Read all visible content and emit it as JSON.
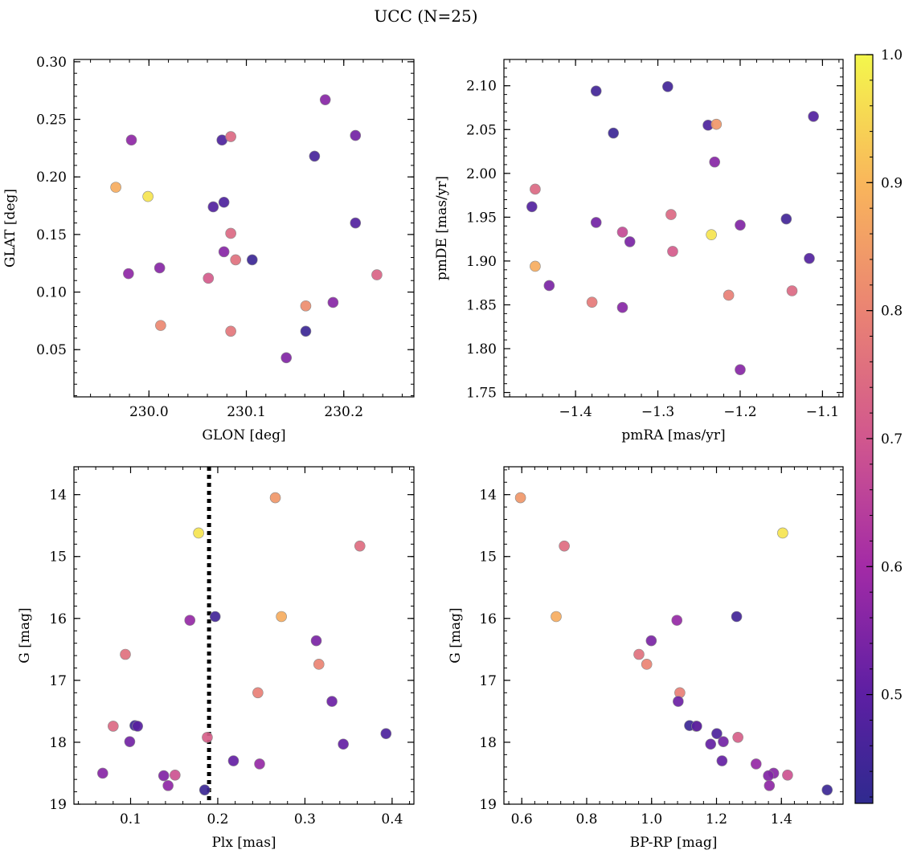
{
  "figure": {
    "title": "UCC (N=25)"
  },
  "colorbar": {
    "vmin": 0.415,
    "vmax": 1.0,
    "ticks": [
      0.5,
      0.6,
      0.7,
      0.8,
      0.9,
      1.0
    ],
    "tick_labels": [
      "0.5",
      "0.6",
      "0.7",
      "0.8",
      "0.9",
      "1.0"
    ],
    "colormap": "plasma"
  },
  "chart_data": [
    {
      "type": "scatter",
      "id": "p1",
      "title": "",
      "xlabel": "GLON [deg]",
      "ylabel": "GLAT [deg]",
      "xlim": [
        229.923,
        230.272
      ],
      "ylim": [
        0.009,
        0.302
      ],
      "invert_y": false,
      "xticks": [
        230.0,
        230.1,
        230.2
      ],
      "xtick_labels": [
        "230.0",
        "230.1",
        "230.2"
      ],
      "yticks": [
        0.05,
        0.1,
        0.15,
        0.2,
        0.25,
        0.3
      ],
      "ytick_labels": [
        "0.05",
        "0.10",
        "0.15",
        "0.20",
        "0.25",
        "0.30"
      ],
      "points": [
        {
          "x": 230.181,
          "y": 0.267,
          "c": 0.56
        },
        {
          "x": 229.982,
          "y": 0.232,
          "c": 0.57
        },
        {
          "x": 230.075,
          "y": 0.232,
          "c": 0.47
        },
        {
          "x": 230.084,
          "y": 0.235,
          "c": 0.74
        },
        {
          "x": 230.212,
          "y": 0.236,
          "c": 0.53
        },
        {
          "x": 230.17,
          "y": 0.218,
          "c": 0.46
        },
        {
          "x": 229.966,
          "y": 0.191,
          "c": 0.88
        },
        {
          "x": 229.999,
          "y": 0.183,
          "c": 0.97
        },
        {
          "x": 230.066,
          "y": 0.174,
          "c": 0.48
        },
        {
          "x": 230.077,
          "y": 0.178,
          "c": 0.47
        },
        {
          "x": 230.212,
          "y": 0.16,
          "c": 0.48
        },
        {
          "x": 230.084,
          "y": 0.151,
          "c": 0.74
        },
        {
          "x": 230.077,
          "y": 0.135,
          "c": 0.56
        },
        {
          "x": 230.089,
          "y": 0.128,
          "c": 0.76
        },
        {
          "x": 230.106,
          "y": 0.128,
          "c": 0.44
        },
        {
          "x": 229.979,
          "y": 0.116,
          "c": 0.57
        },
        {
          "x": 230.011,
          "y": 0.121,
          "c": 0.56
        },
        {
          "x": 230.061,
          "y": 0.112,
          "c": 0.71
        },
        {
          "x": 230.234,
          "y": 0.115,
          "c": 0.73
        },
        {
          "x": 230.161,
          "y": 0.088,
          "c": 0.82
        },
        {
          "x": 230.189,
          "y": 0.091,
          "c": 0.56
        },
        {
          "x": 230.012,
          "y": 0.071,
          "c": 0.81
        },
        {
          "x": 230.084,
          "y": 0.066,
          "c": 0.77
        },
        {
          "x": 230.161,
          "y": 0.066,
          "c": 0.44
        },
        {
          "x": 230.141,
          "y": 0.043,
          "c": 0.55
        }
      ]
    },
    {
      "type": "scatter",
      "id": "p2",
      "title": "",
      "xlabel": "pmRA [mas/yr]",
      "ylabel": "pmDE [mas/yr]",
      "xlim": [
        -1.487,
        -1.075
      ],
      "ylim": [
        1.745,
        2.13
      ],
      "invert_y": false,
      "xticks": [
        -1.4,
        -1.3,
        -1.2,
        -1.1
      ],
      "xtick_labels": [
        "−1.4",
        "−1.3",
        "−1.2",
        "−1.1"
      ],
      "yticks": [
        1.75,
        1.8,
        1.85,
        1.9,
        1.95,
        2.0,
        2.05,
        2.1
      ],
      "ytick_labels": [
        "1.75",
        "1.80",
        "1.85",
        "1.90",
        "1.95",
        "2.00",
        "2.05",
        "2.10"
      ],
      "points": [
        {
          "x": -1.375,
          "y": 2.094,
          "c": 0.45
        },
        {
          "x": -1.288,
          "y": 2.099,
          "c": 0.45
        },
        {
          "x": -1.354,
          "y": 2.046,
          "c": 0.44
        },
        {
          "x": -1.239,
          "y": 2.055,
          "c": 0.47
        },
        {
          "x": -1.229,
          "y": 2.056,
          "c": 0.84
        },
        {
          "x": -1.111,
          "y": 2.065,
          "c": 0.48
        },
        {
          "x": -1.231,
          "y": 2.013,
          "c": 0.56
        },
        {
          "x": -1.449,
          "y": 1.982,
          "c": 0.74
        },
        {
          "x": -1.453,
          "y": 1.962,
          "c": 0.48
        },
        {
          "x": -1.375,
          "y": 1.944,
          "c": 0.53
        },
        {
          "x": -1.284,
          "y": 1.953,
          "c": 0.74
        },
        {
          "x": -1.2,
          "y": 1.941,
          "c": 0.55
        },
        {
          "x": -1.144,
          "y": 1.948,
          "c": 0.45
        },
        {
          "x": -1.343,
          "y": 1.933,
          "c": 0.67
        },
        {
          "x": -1.334,
          "y": 1.922,
          "c": 0.54
        },
        {
          "x": -1.235,
          "y": 1.93,
          "c": 0.97
        },
        {
          "x": -1.282,
          "y": 1.911,
          "c": 0.71
        },
        {
          "x": -1.449,
          "y": 1.894,
          "c": 0.88
        },
        {
          "x": -1.116,
          "y": 1.903,
          "c": 0.48
        },
        {
          "x": -1.432,
          "y": 1.872,
          "c": 0.54
        },
        {
          "x": -1.38,
          "y": 1.853,
          "c": 0.78
        },
        {
          "x": -1.343,
          "y": 1.847,
          "c": 0.56
        },
        {
          "x": -1.214,
          "y": 1.861,
          "c": 0.79
        },
        {
          "x": -1.137,
          "y": 1.866,
          "c": 0.74
        },
        {
          "x": -1.2,
          "y": 1.776,
          "c": 0.56
        }
      ]
    },
    {
      "type": "scatter",
      "id": "p3",
      "title": "",
      "xlabel": "Plx [mas]",
      "ylabel": "G [mag]",
      "xlim": [
        0.035,
        0.425
      ],
      "ylim": [
        19.0,
        13.55
      ],
      "invert_y": true,
      "vline": 0.19,
      "xticks": [
        0.1,
        0.2,
        0.3,
        0.4
      ],
      "xtick_labels": [
        "0.1",
        "0.2",
        "0.3",
        "0.4"
      ],
      "yticks": [
        14,
        15,
        16,
        17,
        18,
        19
      ],
      "ytick_labels": [
        "14",
        "15",
        "16",
        "17",
        "18",
        "19"
      ],
      "points": [
        {
          "x": 0.266,
          "y": 14.05,
          "c": 0.84
        },
        {
          "x": 0.178,
          "y": 14.62,
          "c": 0.97
        },
        {
          "x": 0.363,
          "y": 14.83,
          "c": 0.75
        },
        {
          "x": 0.168,
          "y": 16.03,
          "c": 0.58
        },
        {
          "x": 0.197,
          "y": 15.97,
          "c": 0.45
        },
        {
          "x": 0.273,
          "y": 15.97,
          "c": 0.88
        },
        {
          "x": 0.313,
          "y": 16.36,
          "c": 0.54
        },
        {
          "x": 0.094,
          "y": 16.58,
          "c": 0.76
        },
        {
          "x": 0.316,
          "y": 16.74,
          "c": 0.8
        },
        {
          "x": 0.246,
          "y": 17.2,
          "c": 0.79
        },
        {
          "x": 0.331,
          "y": 17.34,
          "c": 0.52
        },
        {
          "x": 0.08,
          "y": 17.74,
          "c": 0.74
        },
        {
          "x": 0.105,
          "y": 17.73,
          "c": 0.44
        },
        {
          "x": 0.108,
          "y": 17.74,
          "c": 0.49
        },
        {
          "x": 0.393,
          "y": 17.86,
          "c": 0.47
        },
        {
          "x": 0.099,
          "y": 17.99,
          "c": 0.53
        },
        {
          "x": 0.188,
          "y": 17.92,
          "c": 0.72
        },
        {
          "x": 0.344,
          "y": 18.03,
          "c": 0.51
        },
        {
          "x": 0.218,
          "y": 18.3,
          "c": 0.51
        },
        {
          "x": 0.248,
          "y": 18.35,
          "c": 0.58
        },
        {
          "x": 0.068,
          "y": 18.5,
          "c": 0.56
        },
        {
          "x": 0.138,
          "y": 18.54,
          "c": 0.55
        },
        {
          "x": 0.151,
          "y": 18.53,
          "c": 0.69
        },
        {
          "x": 0.143,
          "y": 18.7,
          "c": 0.57
        },
        {
          "x": 0.185,
          "y": 18.77,
          "c": 0.44
        }
      ]
    },
    {
      "type": "scatter",
      "id": "p4",
      "title": "",
      "xlabel": "BP-RP [mag]",
      "ylabel": "G [mag]",
      "xlim": [
        0.545,
        1.59
      ],
      "ylim": [
        19.0,
        13.55
      ],
      "invert_y": true,
      "xticks": [
        0.6,
        0.8,
        1.0,
        1.2,
        1.4
      ],
      "xtick_labels": [
        "0.6",
        "0.8",
        "1.0",
        "1.2",
        "1.4"
      ],
      "yticks": [
        14,
        15,
        16,
        17,
        18,
        19
      ],
      "ytick_labels": [
        "14",
        "15",
        "16",
        "17",
        "18",
        "19"
      ],
      "points": [
        {
          "x": 0.596,
          "y": 14.05,
          "c": 0.84
        },
        {
          "x": 1.404,
          "y": 14.62,
          "c": 0.97
        },
        {
          "x": 0.731,
          "y": 14.83,
          "c": 0.75
        },
        {
          "x": 1.078,
          "y": 16.03,
          "c": 0.58
        },
        {
          "x": 1.262,
          "y": 15.97,
          "c": 0.45
        },
        {
          "x": 0.706,
          "y": 15.97,
          "c": 0.88
        },
        {
          "x": 0.999,
          "y": 16.36,
          "c": 0.54
        },
        {
          "x": 0.961,
          "y": 16.58,
          "c": 0.76
        },
        {
          "x": 0.985,
          "y": 16.74,
          "c": 0.8
        },
        {
          "x": 1.087,
          "y": 17.2,
          "c": 0.79
        },
        {
          "x": 1.082,
          "y": 17.34,
          "c": 0.52
        },
        {
          "x": 1.137,
          "y": 17.74,
          "c": 0.74
        },
        {
          "x": 1.117,
          "y": 17.73,
          "c": 0.44
        },
        {
          "x": 1.139,
          "y": 17.74,
          "c": 0.49
        },
        {
          "x": 1.201,
          "y": 17.86,
          "c": 0.47
        },
        {
          "x": 1.221,
          "y": 17.99,
          "c": 0.53
        },
        {
          "x": 1.266,
          "y": 17.92,
          "c": 0.72
        },
        {
          "x": 1.182,
          "y": 18.03,
          "c": 0.51
        },
        {
          "x": 1.217,
          "y": 18.3,
          "c": 0.51
        },
        {
          "x": 1.322,
          "y": 18.35,
          "c": 0.58
        },
        {
          "x": 1.376,
          "y": 18.5,
          "c": 0.56
        },
        {
          "x": 1.36,
          "y": 18.54,
          "c": 0.55
        },
        {
          "x": 1.419,
          "y": 18.53,
          "c": 0.69
        },
        {
          "x": 1.363,
          "y": 18.7,
          "c": 0.57
        },
        {
          "x": 1.541,
          "y": 18.77,
          "c": 0.44
        }
      ]
    }
  ]
}
